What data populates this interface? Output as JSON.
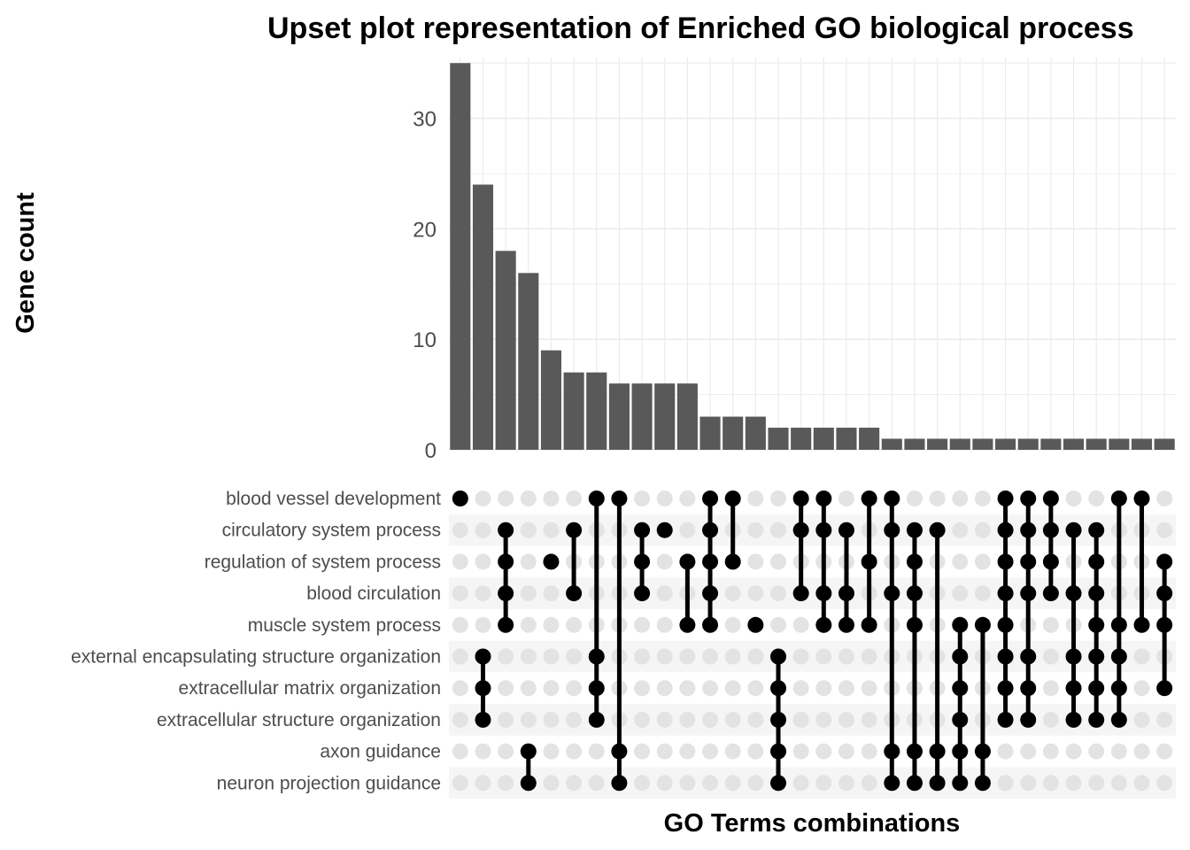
{
  "chart_data": {
    "type": "bar",
    "title": "Upset plot representation of Enriched GO biological process",
    "xlabel": "GO Terms combinations",
    "ylabel": "Gene count",
    "ylim": [
      0,
      35.5
    ],
    "yticks": [
      0,
      10,
      20,
      30
    ],
    "grid": true,
    "sets": [
      "blood vessel development",
      "circulatory system process",
      "regulation of system process",
      "blood circulation",
      "muscle system process",
      "external encapsulating structure organization",
      "extracellular matrix organization",
      "extracellular structure organization",
      "axon guidance",
      "neuron projection guidance"
    ],
    "values": [
      35,
      24,
      18,
      16,
      9,
      7,
      7,
      6,
      6,
      6,
      6,
      3,
      3,
      3,
      2,
      2,
      2,
      2,
      2,
      1,
      1,
      1,
      1,
      1,
      1,
      1,
      1,
      1,
      1,
      1,
      1,
      1
    ],
    "combinations": [
      [
        0
      ],
      [
        5,
        6,
        7
      ],
      [
        1,
        2,
        3,
        4
      ],
      [
        8,
        9
      ],
      [
        2
      ],
      [
        1,
        3
      ],
      [
        0,
        5,
        6,
        7
      ],
      [
        0,
        8,
        9
      ],
      [
        1,
        2,
        3
      ],
      [
        1
      ],
      [
        2,
        4
      ],
      [
        0,
        1,
        2,
        3,
        4
      ],
      [
        0,
        2
      ],
      [
        4
      ],
      [
        5,
        6,
        7,
        8,
        9
      ],
      [
        0,
        1,
        3
      ],
      [
        0,
        1,
        3,
        4
      ],
      [
        1,
        3,
        4
      ],
      [
        0,
        2,
        4
      ],
      [
        0,
        1,
        3,
        8,
        9
      ],
      [
        1,
        2,
        3,
        4,
        8,
        9
      ],
      [
        1,
        8,
        9
      ],
      [
        4,
        5,
        6,
        7,
        8,
        9
      ],
      [
        4,
        8,
        9
      ],
      [
        0,
        1,
        2,
        3,
        4,
        5,
        6,
        7
      ],
      [
        0,
        1,
        2,
        3,
        5,
        6,
        7
      ],
      [
        0,
        1,
        2,
        3
      ],
      [
        1,
        3,
        5,
        6,
        7
      ],
      [
        1,
        2,
        3,
        4,
        5,
        6,
        7
      ],
      [
        0,
        4,
        5,
        6,
        7
      ],
      [
        0,
        4
      ],
      [
        2,
        3,
        4,
        6
      ]
    ]
  }
}
